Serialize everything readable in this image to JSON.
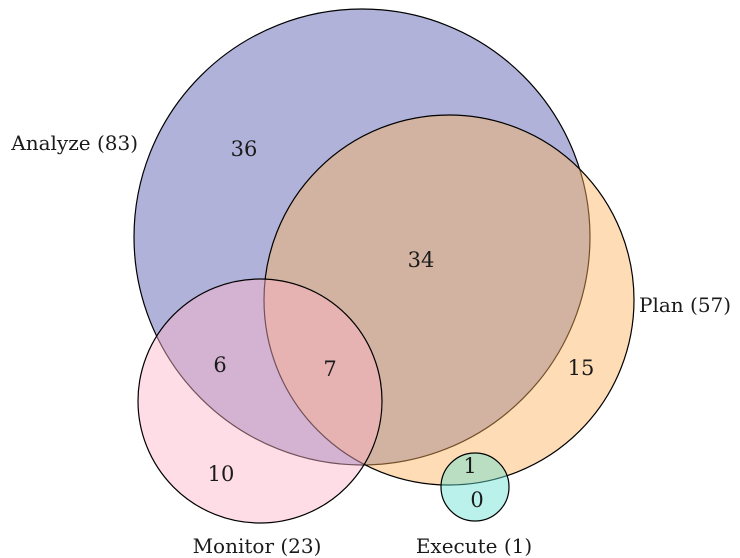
{
  "venn": {
    "sets": [
      {
        "key": "analyze",
        "label": "Analyze (83)",
        "color": "#6a6db7"
      },
      {
        "key": "plan",
        "label": "Plan (57)",
        "color": "#fdb25a"
      },
      {
        "key": "monitor",
        "label": "Monitor (23)",
        "color": "#ffb3c8"
      },
      {
        "key": "execute",
        "label": "Execute (1)",
        "color": "#66e0d3"
      }
    ],
    "regions": [
      {
        "sets": [
          "analyze"
        ],
        "value": "36"
      },
      {
        "sets": [
          "analyze",
          "plan"
        ],
        "value": "34"
      },
      {
        "sets": [
          "plan"
        ],
        "value": "15"
      },
      {
        "sets": [
          "analyze",
          "monitor"
        ],
        "value": "6"
      },
      {
        "sets": [
          "analyze",
          "plan",
          "monitor"
        ],
        "value": "7"
      },
      {
        "sets": [
          "monitor"
        ],
        "value": "10"
      },
      {
        "sets": [
          "plan",
          "execute"
        ],
        "value": "1"
      },
      {
        "sets": [
          "execute"
        ],
        "value": "0"
      }
    ]
  }
}
